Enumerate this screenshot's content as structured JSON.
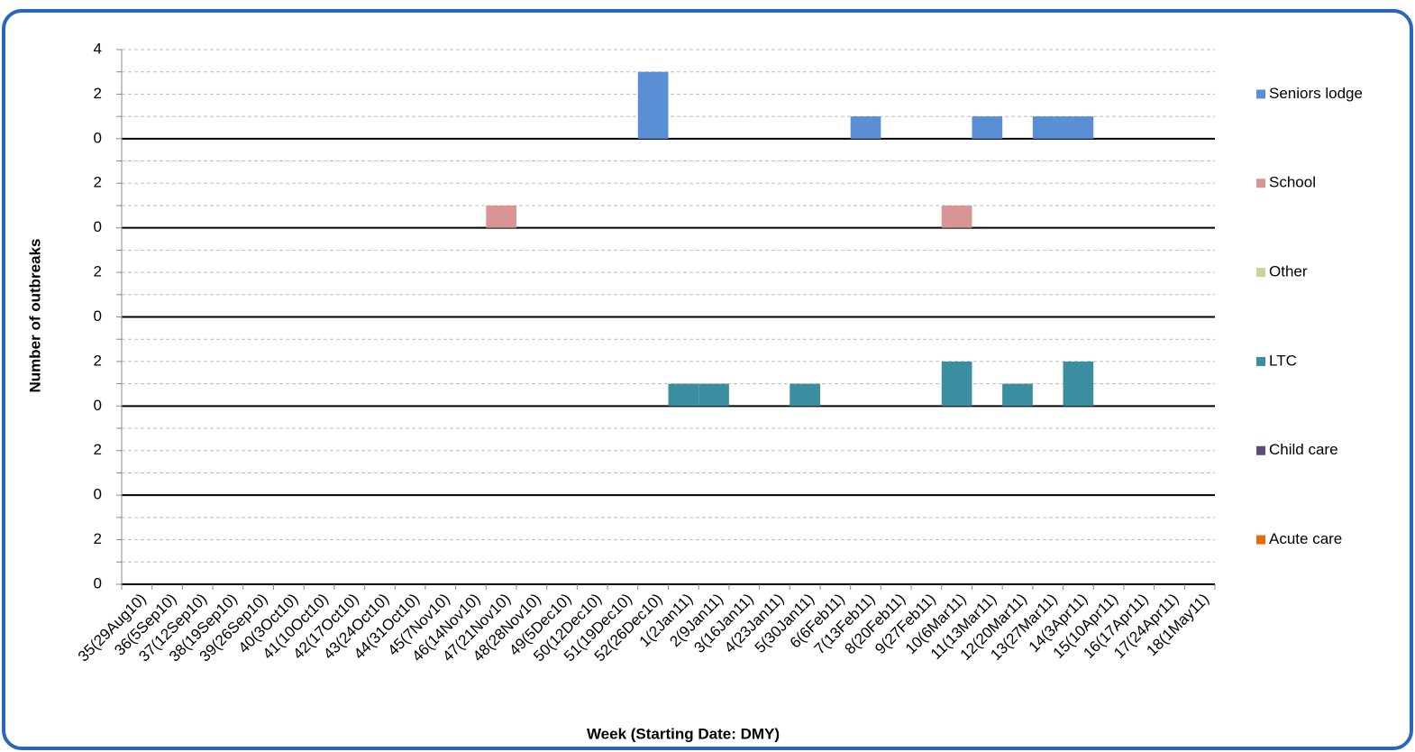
{
  "chart_data": {
    "type": "panel-bar",
    "y_axis_label": "Number of outbreaks",
    "x_axis_label": "Week (Starting Date: DMY)",
    "categories": [
      "35(29Aug10)",
      "36(5Sep10)",
      "37(12Sep10)",
      "38(19Sep10)",
      "39(26Sep10)",
      "40(3Oct10)",
      "41(10Oct10)",
      "42(17Oct10)",
      "43(24Oct10)",
      "44(31Oct10)",
      "45(7Nov10)",
      "46(14Nov10)",
      "47(21Nov10)",
      "48(28Nov10)",
      "49(5Dec10)",
      "50(12Dec10)",
      "51(19Dec10)",
      "52(26Dec10)",
      "1(2Jan11)",
      "2(9Jan11)",
      "3(16Jan11)",
      "4(23Jan11)",
      "5(30Jan11)",
      "6(6Feb11)",
      "7(13Feb11)",
      "8(20Feb11)",
      "9(27Feb11)",
      "10(6Mar11)",
      "11(13Mar11)",
      "12(20Mar11)",
      "13(27Mar11)",
      "14(3Apr11)",
      "15(10Apr11)",
      "16(17Apr11)",
      "17(24Apr11)",
      "18(1May11)"
    ],
    "series": [
      {
        "name": "Seniors lodge",
        "color": "#5a8fd6",
        "values": [
          0,
          0,
          0,
          0,
          0,
          0,
          0,
          0,
          0,
          0,
          0,
          0,
          0,
          0,
          0,
          0,
          0,
          3,
          0,
          0,
          0,
          0,
          0,
          0,
          1,
          0,
          0,
          0,
          1,
          0,
          1,
          1,
          0,
          0,
          0,
          0
        ]
      },
      {
        "name": "School",
        "color": "#d99594",
        "values": [
          0,
          0,
          0,
          0,
          0,
          0,
          0,
          0,
          0,
          0,
          0,
          0,
          1,
          0,
          0,
          0,
          0,
          0,
          0,
          0,
          0,
          0,
          0,
          0,
          0,
          0,
          0,
          1,
          0,
          0,
          0,
          0,
          0,
          0,
          0,
          0
        ]
      },
      {
        "name": "Other",
        "color": "#c3d69b",
        "values": [
          0,
          0,
          0,
          0,
          0,
          0,
          0,
          0,
          0,
          0,
          0,
          0,
          0,
          0,
          0,
          0,
          0,
          0,
          0,
          0,
          0,
          0,
          0,
          0,
          0,
          0,
          0,
          0,
          0,
          0,
          0,
          0,
          0,
          0,
          0,
          0
        ]
      },
      {
        "name": "LTC",
        "color": "#3a8ea0",
        "values": [
          0,
          0,
          0,
          0,
          0,
          0,
          0,
          0,
          0,
          0,
          0,
          0,
          0,
          0,
          0,
          0,
          0,
          0,
          1,
          1,
          0,
          0,
          1,
          0,
          0,
          0,
          0,
          2,
          0,
          1,
          0,
          2,
          0,
          0,
          0,
          0
        ]
      },
      {
        "name": "Child care",
        "color": "#604a7b",
        "values": [
          0,
          0,
          0,
          0,
          0,
          0,
          0,
          0,
          0,
          0,
          0,
          0,
          0,
          0,
          0,
          0,
          0,
          0,
          0,
          0,
          0,
          0,
          0,
          0,
          0,
          0,
          0,
          0,
          0,
          0,
          0,
          0,
          0,
          0,
          0,
          0
        ]
      },
      {
        "name": "Acute care",
        "color": "#e46c0a",
        "values": [
          0,
          0,
          0,
          0,
          0,
          0,
          0,
          0,
          0,
          0,
          0,
          0,
          0,
          0,
          0,
          0,
          0,
          0,
          0,
          0,
          0,
          0,
          0,
          0,
          0,
          0,
          0,
          0,
          0,
          0,
          0,
          0,
          0,
          0,
          0,
          0
        ]
      }
    ],
    "ylim": [
      0,
      4
    ],
    "yticks": [
      0,
      2,
      4
    ],
    "minor_yticks": [
      1,
      3
    ],
    "grid": true,
    "legend": "right"
  }
}
